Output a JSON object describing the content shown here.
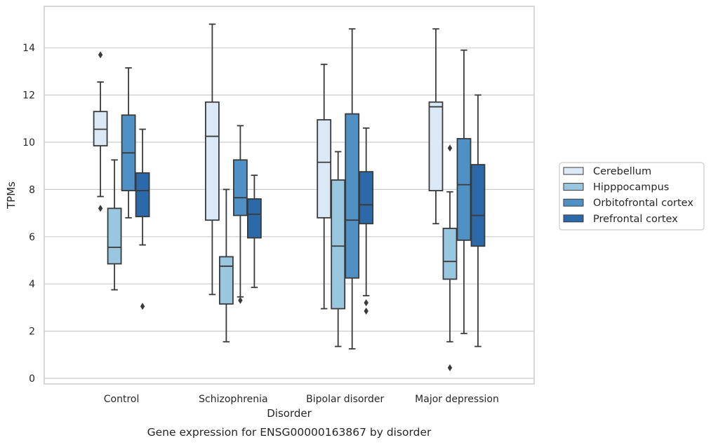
{
  "caption": "Gene expression for ENSG00000163867 by disorder",
  "chart_data": {
    "type": "boxplot",
    "xlabel": "Disorder",
    "ylabel": "TPMs",
    "ylim": [
      -0.2,
      15.7
    ],
    "yticks": [
      0,
      2,
      4,
      6,
      8,
      10,
      12,
      14
    ],
    "grid": "horizontal",
    "legend_placement": "right, outside plot",
    "categories": [
      "Control",
      "Schizophrenia",
      "Bipolar disorder",
      "Major depression"
    ],
    "series": [
      {
        "name": "Cerebellum",
        "color": "#dbe9f6",
        "boxes": [
          {
            "whislo": 7.7,
            "q1": 9.85,
            "med": 10.55,
            "q3": 11.3,
            "whishi": 12.55,
            "fliers": [
              13.7,
              7.2
            ]
          },
          {
            "whislo": 3.55,
            "q1": 6.7,
            "med": 10.25,
            "q3": 11.7,
            "whishi": 15.0,
            "fliers": []
          },
          {
            "whislo": 2.95,
            "q1": 6.8,
            "med": 9.15,
            "q3": 10.95,
            "whishi": 13.3,
            "fliers": []
          },
          {
            "whislo": 6.55,
            "q1": 7.95,
            "med": 11.5,
            "q3": 11.7,
            "whishi": 14.8,
            "fliers": []
          }
        ]
      },
      {
        "name": "Hipppocampus",
        "color": "#9ac7e0",
        "boxes": [
          {
            "whislo": 3.75,
            "q1": 4.85,
            "med": 5.55,
            "q3": 7.2,
            "whishi": 9.25,
            "fliers": []
          },
          {
            "whislo": 1.55,
            "q1": 3.15,
            "med": 4.75,
            "q3": 5.15,
            "whishi": 8.0,
            "fliers": []
          },
          {
            "whislo": 1.35,
            "q1": 2.95,
            "med": 5.6,
            "q3": 8.4,
            "whishi": 9.6,
            "fliers": []
          },
          {
            "whislo": 1.55,
            "q1": 4.2,
            "med": 4.95,
            "q3": 6.35,
            "whishi": 7.9,
            "fliers": [
              9.75,
              0.45
            ]
          }
        ]
      },
      {
        "name": "Orbitofrontal cortex",
        "color": "#4f91c4",
        "boxes": [
          {
            "whislo": 6.8,
            "q1": 7.95,
            "med": 9.55,
            "q3": 11.15,
            "whishi": 13.15,
            "fliers": []
          },
          {
            "whislo": 3.45,
            "q1": 6.9,
            "med": 7.65,
            "q3": 9.25,
            "whishi": 10.7,
            "fliers": [
              3.3
            ]
          },
          {
            "whislo": 1.25,
            "q1": 4.25,
            "med": 6.7,
            "q3": 11.2,
            "whishi": 14.8,
            "fliers": []
          },
          {
            "whislo": 1.9,
            "q1": 5.85,
            "med": 8.2,
            "q3": 10.15,
            "whishi": 13.9,
            "fliers": []
          }
        ]
      },
      {
        "name": "Prefrontal cortex",
        "color": "#2c69a8",
        "boxes": [
          {
            "whislo": 5.65,
            "q1": 6.85,
            "med": 7.95,
            "q3": 8.7,
            "whishi": 10.55,
            "fliers": [
              3.05
            ]
          },
          {
            "whislo": 3.85,
            "q1": 5.95,
            "med": 6.95,
            "q3": 7.6,
            "whishi": 8.6,
            "fliers": []
          },
          {
            "whislo": 3.5,
            "q1": 6.55,
            "med": 7.35,
            "q3": 8.75,
            "whishi": 10.6,
            "fliers": [
              3.2,
              2.85
            ]
          },
          {
            "whislo": 1.35,
            "q1": 5.6,
            "med": 6.9,
            "q3": 9.05,
            "whishi": 12.0,
            "fliers": []
          }
        ]
      }
    ]
  }
}
